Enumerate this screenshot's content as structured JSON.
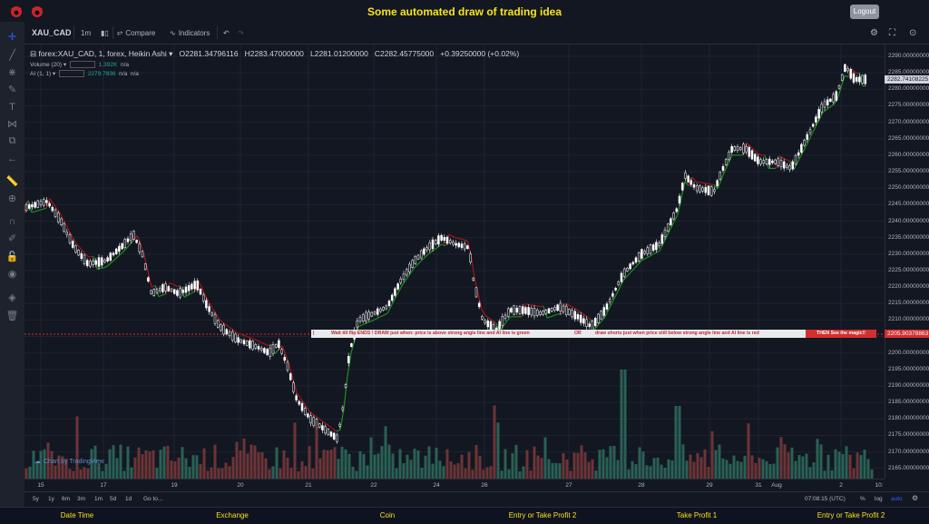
{
  "header": {
    "title": "Some automated draw of trading idea",
    "logout_label": "Logout"
  },
  "toolbar": {
    "symbol": "XAU_CAD",
    "interval": "1m",
    "compare_label": "Compare",
    "indicators_label": "Indicators"
  },
  "legend": {
    "title": "forex:XAU_CAD, 1, forex, Heikin Ashi",
    "open": "O2281.34796116",
    "high": "H2283.47000000",
    "low": "L2281.01200000",
    "close": "C2282.45775000",
    "change": "+0.39250000 (+0.02%)",
    "volume_label": "Volume (20)",
    "volume_value": "1.392K",
    "volume_na": "n/a",
    "ai_label": "AI (1, 1)",
    "ai_value": "2279.7836",
    "ai_na1": "n/a",
    "ai_na2": "n/a"
  },
  "price_axis": {
    "labels": [
      "2290.00000000",
      "2285.00000000",
      "2280.00000000",
      "2275.00000000",
      "2270.00000000",
      "2265.00000000",
      "2260.00000000",
      "2255.00000000",
      "2250.00000000",
      "2245.00000000",
      "2240.00000000",
      "2235.00000000",
      "2230.00000000",
      "2225.00000000",
      "2220.00000000",
      "2215.00000000",
      "2210.00000000",
      "2205.00000000",
      "2200.00000000",
      "2195.00000000",
      "2190.00000000",
      "2185.00000000",
      "2180.00000000",
      "2175.00000000",
      "2170.00000000",
      "2165.00000000"
    ],
    "current_price": "2282.74108225",
    "line_price": "2205.90378863"
  },
  "time_axis": {
    "labels": [
      "15",
      "17",
      "19",
      "20",
      "21",
      "22",
      "24",
      "26",
      "27",
      "28",
      "29",
      "31",
      "Aug",
      "2",
      "10:"
    ]
  },
  "banner": {
    "text1": "Wait till flip ENDS  !   DRAW just when:  price is above strong angle line and AI line is green",
    "text2": "OR",
    "text3": "draw shorts just when price still below strong angle line and AI line is red",
    "magic": "THEN See the magic!!"
  },
  "watermark": "Chart by TradingView",
  "range_bar": {
    "ranges": [
      "5y",
      "1y",
      "6m",
      "3m",
      "1m",
      "5d",
      "1d"
    ],
    "goto": "Go to...",
    "time": "07:08:15 (UTC)",
    "percent": "%",
    "log": "log",
    "auto": "auto"
  },
  "bottom": [
    "Date Time",
    "Exchange",
    "Coin",
    "Entry or Take Profit 2",
    "Take Profit 1",
    "Entry or Take Profit 2"
  ],
  "colors": {
    "up": "#26a69a",
    "down": "#ef5350",
    "candle": "#ffffff",
    "ai_green": "#1b8f1b",
    "ai_red": "#a01818",
    "accent_yellow": "#f5e51b"
  },
  "icons": [
    "crosshair-icon",
    "trend-line-icon",
    "fib-icon",
    "brush-icon",
    "text-icon",
    "pattern-icon",
    "projection-icon",
    "arrow-left-icon",
    "ruler-icon",
    "zoom-icon",
    "magnet-icon",
    "pencil-lock-icon",
    "lock-icon",
    "eye-icon",
    "layers-icon",
    "trash-icon"
  ]
}
